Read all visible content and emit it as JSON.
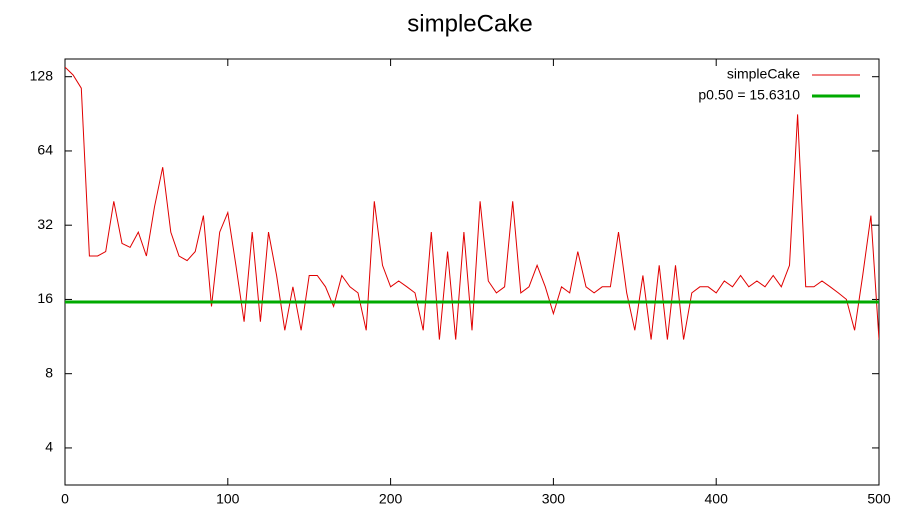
{
  "chart_data": {
    "type": "line",
    "title": "simpleCake",
    "x": [
      0,
      5,
      10,
      15,
      20,
      25,
      30,
      35,
      40,
      45,
      50,
      55,
      60,
      65,
      70,
      75,
      80,
      85,
      90,
      95,
      100,
      105,
      110,
      115,
      120,
      125,
      130,
      135,
      140,
      145,
      150,
      155,
      160,
      165,
      170,
      175,
      180,
      185,
      190,
      195,
      200,
      205,
      210,
      215,
      220,
      225,
      230,
      235,
      240,
      245,
      250,
      255,
      260,
      265,
      270,
      275,
      280,
      285,
      290,
      295,
      300,
      305,
      310,
      315,
      320,
      325,
      330,
      335,
      340,
      345,
      350,
      355,
      360,
      365,
      370,
      375,
      380,
      385,
      390,
      395,
      400,
      405,
      410,
      415,
      420,
      425,
      430,
      435,
      440,
      445,
      450,
      455,
      460,
      465,
      470,
      475,
      480,
      485,
      490,
      495,
      500
    ],
    "series": [
      {
        "name": "simpleCake",
        "color": "#e00000",
        "values": [
          140,
          130,
          115,
          24,
          24,
          25,
          40,
          27,
          26,
          30,
          24,
          38,
          55,
          30,
          24,
          23,
          25,
          35,
          15,
          30,
          36,
          22,
          13,
          30,
          13,
          30,
          20,
          12,
          18,
          12,
          20,
          20,
          18,
          15,
          20,
          18,
          17,
          12,
          40,
          22,
          18,
          19,
          18,
          17,
          12,
          30,
          11,
          25,
          11,
          30,
          12,
          40,
          19,
          17,
          18,
          40,
          17,
          18,
          22,
          18,
          14,
          18,
          17,
          25,
          18,
          17,
          18,
          18,
          30,
          17,
          12,
          20,
          11,
          22,
          11,
          22,
          11,
          17,
          18,
          18,
          17,
          19,
          18,
          20,
          18,
          19,
          18,
          20,
          18,
          22,
          90,
          18,
          18,
          19,
          18,
          17,
          16,
          12,
          20,
          35,
          11
        ]
      }
    ],
    "reference_lines": [
      {
        "name": "p0.50 = 15.6310",
        "value": 15.631,
        "color": "#00aa00"
      }
    ],
    "xlim": [
      0,
      500
    ],
    "xticks": [
      0,
      100,
      200,
      300,
      400,
      500
    ],
    "ylim": [
      2.83,
      151
    ],
    "yticks": [
      4,
      8,
      16,
      32,
      64,
      128
    ],
    "log_scale_y": true,
    "grid": false,
    "legend": "top-right"
  }
}
